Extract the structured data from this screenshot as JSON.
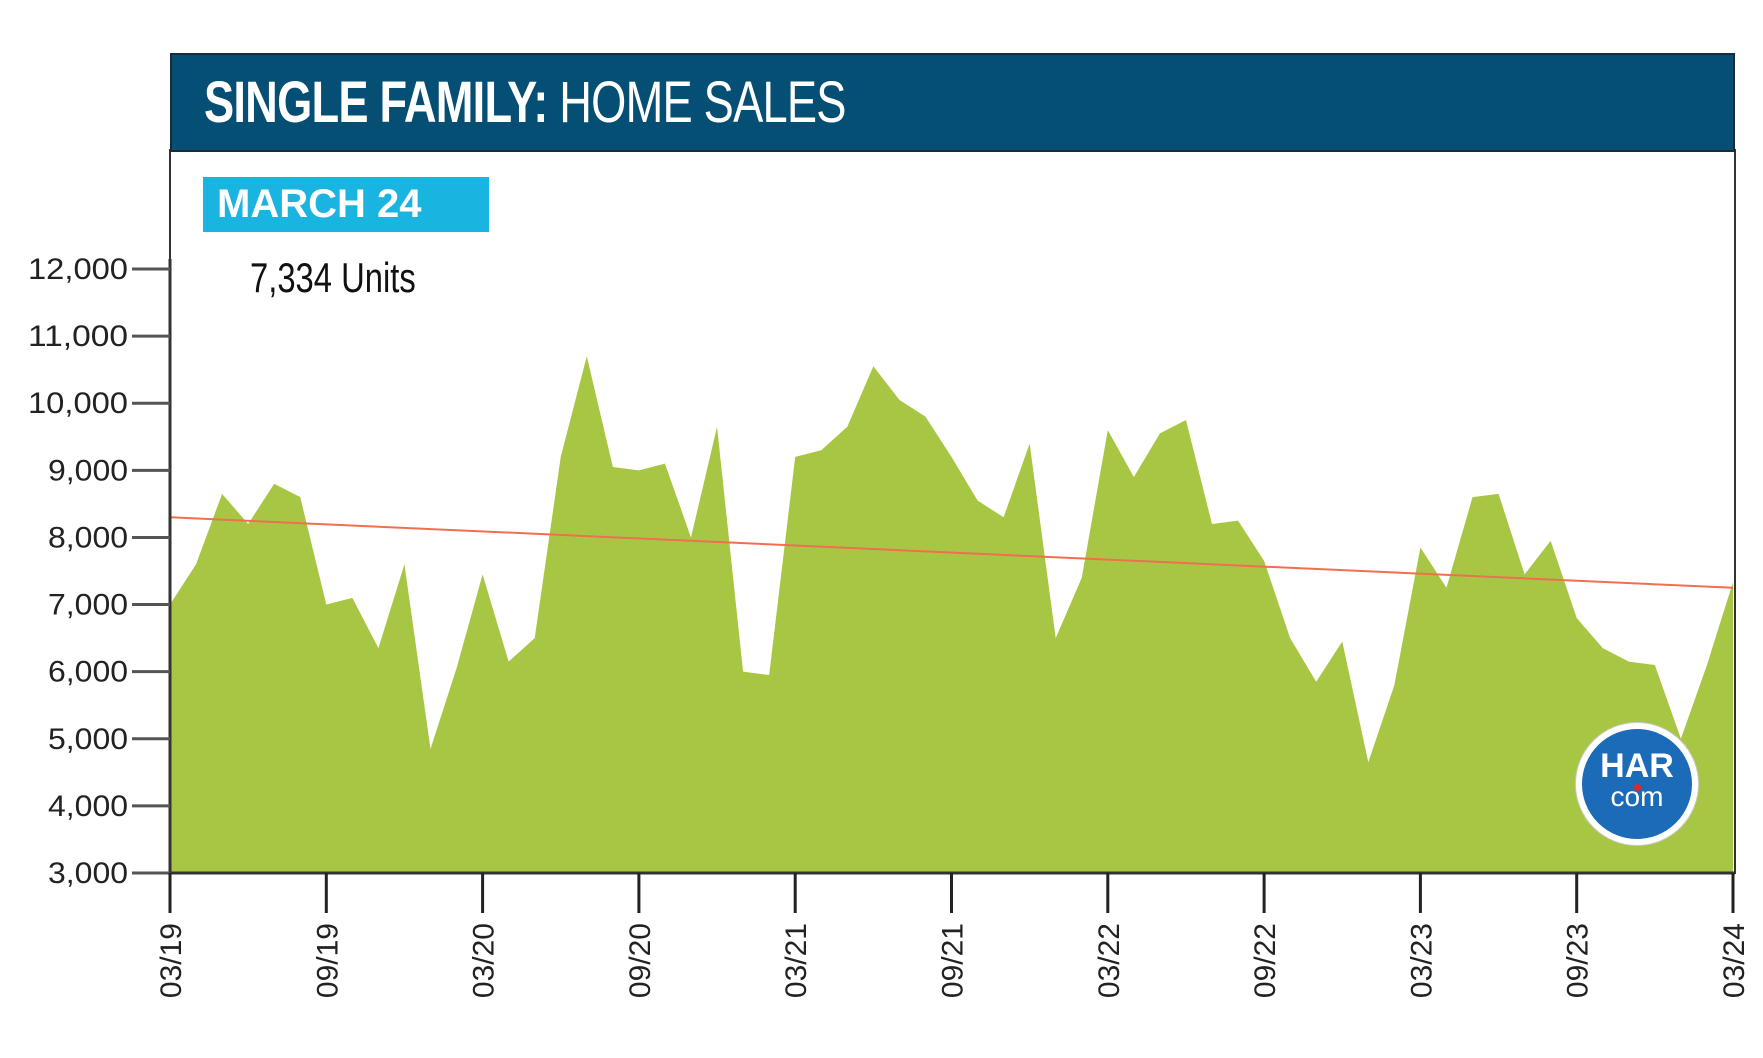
{
  "header": {
    "title_bold": "SINGLE FAMILY:",
    "title_rest": " HOME SALES"
  },
  "badge": {
    "label": "MARCH 24"
  },
  "highlight": {
    "value_text": "7,334 Units"
  },
  "logo": {
    "line1": "HAR",
    "line2": "com"
  },
  "colors": {
    "area": "#a7c744",
    "trend": "#ef6f4f",
    "header": "#054f74",
    "badge": "#1ab4e0"
  },
  "chart_data": {
    "type": "area",
    "title": "SINGLE FAMILY: HOME SALES",
    "xlabel": "",
    "ylabel": "",
    "ylim": [
      3000,
      12000
    ],
    "yticks": [
      "3,000",
      "4,000",
      "5,000",
      "6,000",
      "7,000",
      "8,000",
      "9,000",
      "10,000",
      "11,000",
      "12,000"
    ],
    "ytick_values": [
      3000,
      4000,
      5000,
      6000,
      7000,
      8000,
      9000,
      10000,
      11000,
      12000
    ],
    "xticks": [
      "03/19",
      "09/19",
      "03/20",
      "09/20",
      "03/21",
      "09/21",
      "03/22",
      "09/22",
      "03/23",
      "09/23",
      "03/24"
    ],
    "xtick_index": [
      0,
      6,
      12,
      18,
      24,
      30,
      36,
      42,
      48,
      54,
      60
    ],
    "series": [
      {
        "name": "Home Sales",
        "values": [
          7000,
          7600,
          8650,
          8200,
          8800,
          8600,
          7000,
          7100,
          6350,
          7600,
          4850,
          6050,
          7450,
          6150,
          6500,
          9200,
          10700,
          9050,
          9000,
          9100,
          8000,
          9650,
          6000,
          5950,
          9200,
          9300,
          9650,
          10550,
          10050,
          9800,
          9200,
          8550,
          8300,
          9400,
          6500,
          7400,
          9600,
          8900,
          9550,
          9750,
          8200,
          8250,
          7650,
          6500,
          5850,
          6450,
          4650,
          5800,
          7850,
          7250,
          8600,
          8650,
          7450,
          7950,
          6800,
          6350,
          6150,
          6100,
          5000,
          6100,
          7334
        ]
      }
    ],
    "trend": {
      "name": "Trend",
      "start": 8300,
      "end": 7250
    }
  }
}
